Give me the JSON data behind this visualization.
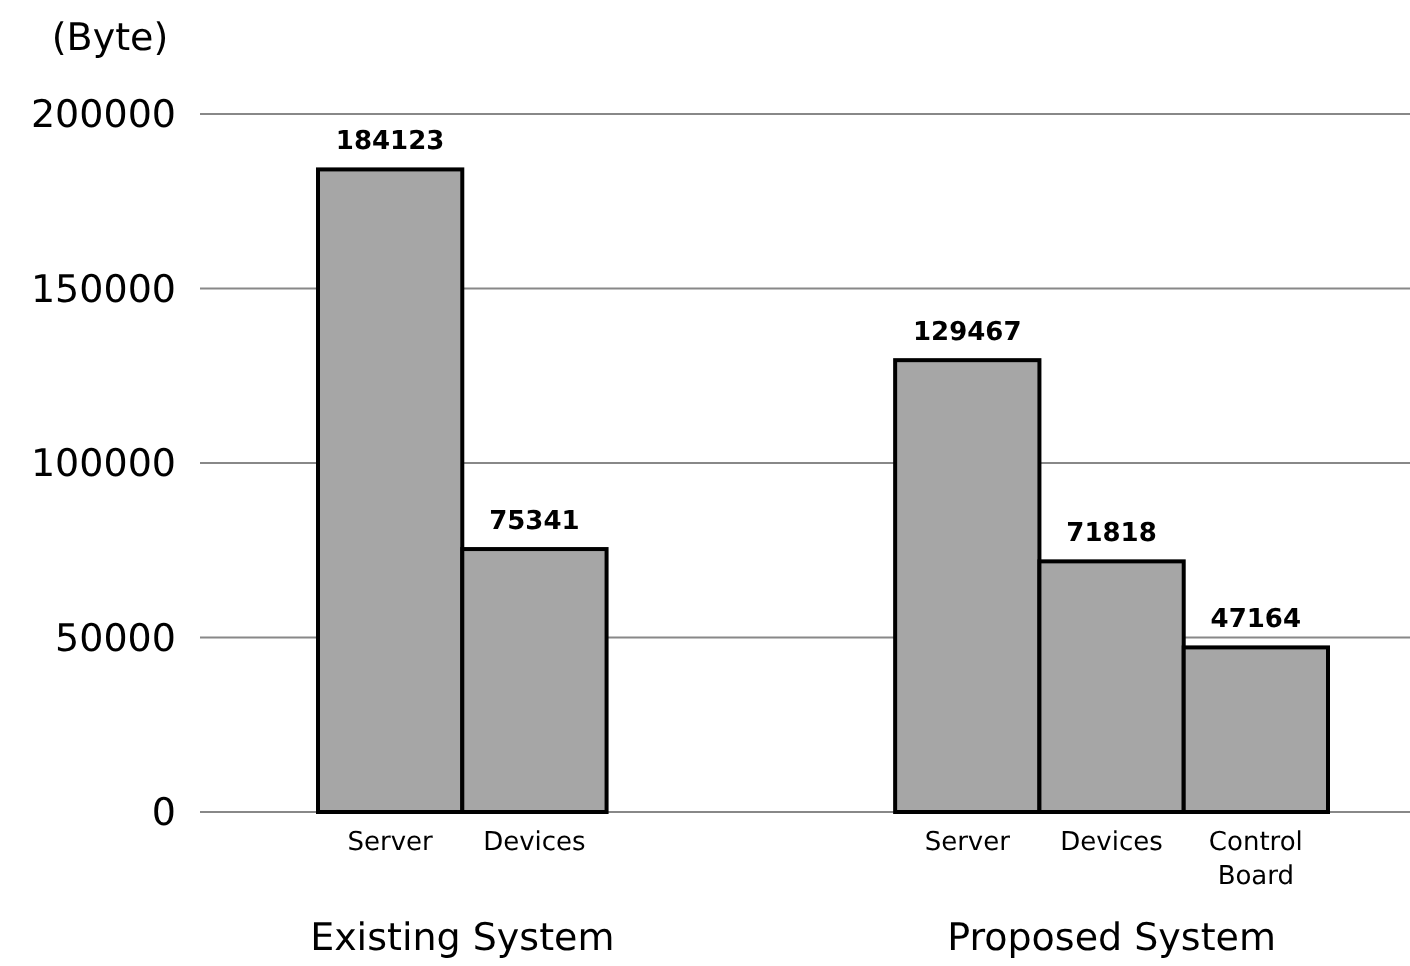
{
  "chart_data": {
    "type": "bar",
    "ylabel": "(Byte)",
    "categories": [
      "Server",
      "Devices",
      null,
      null,
      "Server",
      "Devices",
      "Control Board"
    ],
    "values": [
      184123,
      75341,
      null,
      null,
      129467,
      71818,
      47164
    ],
    "color": "#a6a6a6",
    "ylim": [
      0,
      200000
    ],
    "yticks": [
      0,
      50000,
      100000,
      150000,
      200000
    ],
    "grid": "y",
    "data_labels": true,
    "annotations": [
      "Existing System",
      "Proposed System"
    ]
  }
}
